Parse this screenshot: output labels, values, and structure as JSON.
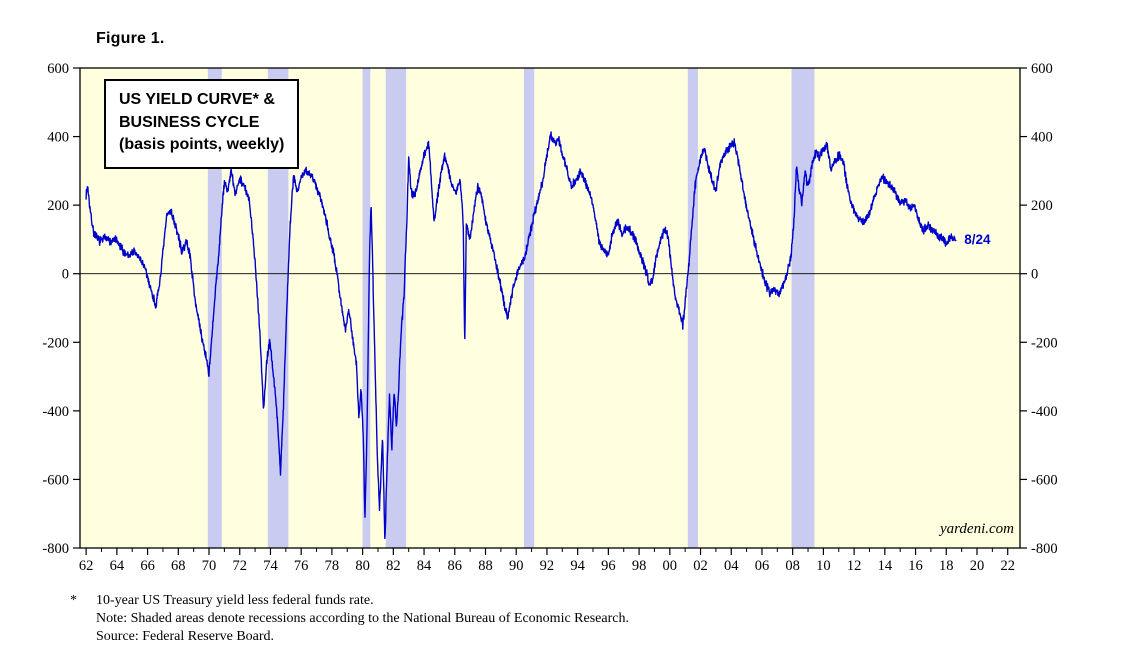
{
  "figure_label": "Figure 1.",
  "title_box": {
    "line1": "US YIELD CURVE* &",
    "line2": "BUSINESS CYCLE",
    "line3": "(basis points, weekly)"
  },
  "watermark": "yardeni.com",
  "footnotes": {
    "marker": "*",
    "line1": "10-year US Treasury yield less federal funds rate.",
    "line2": "Note: Shaded areas denote recessions according to the National Bureau of Economic Research.",
    "line3": "Source: Federal Reserve Board."
  },
  "chart_data": {
    "type": "line",
    "title": "US YIELD CURVE* & BUSINESS CYCLE (basis points, weekly)",
    "ylabel": "basis points",
    "xlabel": "",
    "xlim": [
      1961.6,
      2022.8
    ],
    "ylim": [
      -800,
      600
    ],
    "zero_line": true,
    "grid": false,
    "legend": "none",
    "last_label": "8/24",
    "seed": 7,
    "noise_bps": 15,
    "colors": {
      "line": "#0000cc",
      "plot_bg": "#ffffe0",
      "recession_band": "#c9ccf0",
      "frame": "#000000",
      "label_blue": "#0000cc"
    },
    "y_axis": {
      "ticks": [
        600,
        400,
        200,
        0,
        -200,
        -400,
        -600,
        -800
      ],
      "labels": [
        "600",
        "400",
        "200",
        "0",
        "-200",
        "-400",
        "-600",
        "-800"
      ]
    },
    "x_axis": {
      "ticks": [
        1962,
        1964,
        1966,
        1968,
        1970,
        1972,
        1974,
        1976,
        1978,
        1980,
        1982,
        1984,
        1986,
        1988,
        1990,
        1992,
        1994,
        1996,
        1998,
        2000,
        2002,
        2004,
        2006,
        2008,
        2010,
        2012,
        2014,
        2016,
        2018,
        2020,
        2022
      ],
      "labels": [
        "62",
        "64",
        "66",
        "68",
        "70",
        "72",
        "74",
        "76",
        "78",
        "80",
        "82",
        "84",
        "86",
        "88",
        "90",
        "92",
        "94",
        "96",
        "98",
        "00",
        "02",
        "04",
        "06",
        "08",
        "10",
        "12",
        "14",
        "16",
        "18",
        "20",
        "22"
      ],
      "minor_step": 1
    },
    "recessions": [
      [
        1969.92,
        1970.83
      ],
      [
        1973.83,
        1975.17
      ],
      [
        1980.0,
        1980.5
      ],
      [
        1981.5,
        1982.83
      ],
      [
        1990.5,
        1991.17
      ],
      [
        2001.17,
        2001.83
      ],
      [
        2007.92,
        2009.42
      ]
    ],
    "series": [
      {
        "name": "10-year US Treasury yield less federal funds rate",
        "color": "#0000cc",
        "anchors": [
          [
            1962.0,
            230
          ],
          [
            1962.1,
            255
          ],
          [
            1962.3,
            170
          ],
          [
            1962.5,
            120
          ],
          [
            1962.75,
            100
          ],
          [
            1963.0,
            95
          ],
          [
            1963.3,
            110
          ],
          [
            1963.6,
            90
          ],
          [
            1963.9,
            100
          ],
          [
            1964.2,
            80
          ],
          [
            1964.5,
            60
          ],
          [
            1964.8,
            55
          ],
          [
            1965.1,
            65
          ],
          [
            1965.4,
            50
          ],
          [
            1965.7,
            30
          ],
          [
            1966.0,
            -10
          ],
          [
            1966.3,
            -60
          ],
          [
            1966.55,
            -95
          ],
          [
            1966.75,
            -40
          ],
          [
            1967.0,
            60
          ],
          [
            1967.25,
            170
          ],
          [
            1967.5,
            185
          ],
          [
            1967.75,
            150
          ],
          [
            1968.0,
            110
          ],
          [
            1968.25,
            60
          ],
          [
            1968.5,
            95
          ],
          [
            1968.75,
            60
          ],
          [
            1969.0,
            -40
          ],
          [
            1969.25,
            -120
          ],
          [
            1969.5,
            -180
          ],
          [
            1969.75,
            -230
          ],
          [
            1970.0,
            -290
          ],
          [
            1970.2,
            -180
          ],
          [
            1970.4,
            -60
          ],
          [
            1970.6,
            40
          ],
          [
            1970.8,
            160
          ],
          [
            1971.0,
            270
          ],
          [
            1971.2,
            240
          ],
          [
            1971.45,
            300
          ],
          [
            1971.7,
            230
          ],
          [
            1972.0,
            280
          ],
          [
            1972.3,
            255
          ],
          [
            1972.6,
            215
          ],
          [
            1972.85,
            120
          ],
          [
            1973.1,
            -30
          ],
          [
            1973.3,
            -160
          ],
          [
            1973.55,
            -400
          ],
          [
            1973.75,
            -260
          ],
          [
            1973.95,
            -190
          ],
          [
            1974.2,
            -300
          ],
          [
            1974.45,
            -420
          ],
          [
            1974.65,
            -580
          ],
          [
            1974.85,
            -380
          ],
          [
            1975.05,
            -120
          ],
          [
            1975.25,
            120
          ],
          [
            1975.5,
            285
          ],
          [
            1975.75,
            240
          ],
          [
            1976.0,
            280
          ],
          [
            1976.3,
            300
          ],
          [
            1976.6,
            290
          ],
          [
            1976.9,
            265
          ],
          [
            1977.2,
            230
          ],
          [
            1977.5,
            185
          ],
          [
            1977.8,
            120
          ],
          [
            1978.1,
            60
          ],
          [
            1978.4,
            -20
          ],
          [
            1978.7,
            -120
          ],
          [
            1978.9,
            -160
          ],
          [
            1979.1,
            -100
          ],
          [
            1979.35,
            -190
          ],
          [
            1979.6,
            -260
          ],
          [
            1979.75,
            -420
          ],
          [
            1979.9,
            -330
          ],
          [
            1980.05,
            -480
          ],
          [
            1980.15,
            -720
          ],
          [
            1980.3,
            -430
          ],
          [
            1980.45,
            60
          ],
          [
            1980.55,
            205
          ],
          [
            1980.65,
            30
          ],
          [
            1980.8,
            -250
          ],
          [
            1980.95,
            -520
          ],
          [
            1981.1,
            -690
          ],
          [
            1981.3,
            -480
          ],
          [
            1981.45,
            -780
          ],
          [
            1981.6,
            -560
          ],
          [
            1981.75,
            -350
          ],
          [
            1981.9,
            -510
          ],
          [
            1982.05,
            -340
          ],
          [
            1982.2,
            -450
          ],
          [
            1982.35,
            -330
          ],
          [
            1982.5,
            -180
          ],
          [
            1982.7,
            -60
          ],
          [
            1982.9,
            180
          ],
          [
            1983.0,
            345
          ],
          [
            1983.15,
            240
          ],
          [
            1983.4,
            230
          ],
          [
            1983.65,
            280
          ],
          [
            1983.9,
            330
          ],
          [
            1984.1,
            355
          ],
          [
            1984.3,
            385
          ],
          [
            1984.5,
            255
          ],
          [
            1984.65,
            150
          ],
          [
            1984.9,
            230
          ],
          [
            1985.1,
            295
          ],
          [
            1985.35,
            345
          ],
          [
            1985.6,
            300
          ],
          [
            1985.85,
            255
          ],
          [
            1986.1,
            235
          ],
          [
            1986.35,
            280
          ],
          [
            1986.55,
            150
          ],
          [
            1986.65,
            -215
          ],
          [
            1986.75,
            140
          ],
          [
            1987.0,
            105
          ],
          [
            1987.25,
            185
          ],
          [
            1987.5,
            255
          ],
          [
            1987.75,
            225
          ],
          [
            1988.0,
            155
          ],
          [
            1988.3,
            105
          ],
          [
            1988.6,
            45
          ],
          [
            1988.9,
            -15
          ],
          [
            1989.2,
            -85
          ],
          [
            1989.45,
            -130
          ],
          [
            1989.7,
            -60
          ],
          [
            1990.0,
            -5
          ],
          [
            1990.3,
            25
          ],
          [
            1990.6,
            55
          ],
          [
            1990.85,
            105
          ],
          [
            1991.1,
            160
          ],
          [
            1991.4,
            215
          ],
          [
            1991.7,
            265
          ],
          [
            1992.0,
            345
          ],
          [
            1992.25,
            405
          ],
          [
            1992.5,
            380
          ],
          [
            1992.75,
            395
          ],
          [
            1993.0,
            350
          ],
          [
            1993.3,
            305
          ],
          [
            1993.6,
            255
          ],
          [
            1993.9,
            275
          ],
          [
            1994.2,
            295
          ],
          [
            1994.5,
            265
          ],
          [
            1994.8,
            235
          ],
          [
            1995.1,
            175
          ],
          [
            1995.4,
            95
          ],
          [
            1995.7,
            65
          ],
          [
            1996.0,
            55
          ],
          [
            1996.3,
            125
          ],
          [
            1996.6,
            155
          ],
          [
            1996.9,
            115
          ],
          [
            1997.2,
            135
          ],
          [
            1997.5,
            120
          ],
          [
            1997.8,
            95
          ],
          [
            1998.1,
            55
          ],
          [
            1998.4,
            15
          ],
          [
            1998.7,
            -35
          ],
          [
            1998.9,
            -10
          ],
          [
            1999.1,
            45
          ],
          [
            1999.4,
            95
          ],
          [
            1999.7,
            135
          ],
          [
            1999.9,
            105
          ],
          [
            2000.1,
            25
          ],
          [
            2000.35,
            -65
          ],
          [
            2000.6,
            -110
          ],
          [
            2000.85,
            -150
          ],
          [
            2001.05,
            -60
          ],
          [
            2001.25,
            30
          ],
          [
            2001.45,
            155
          ],
          [
            2001.65,
            255
          ],
          [
            2001.85,
            310
          ],
          [
            2002.05,
            345
          ],
          [
            2002.25,
            365
          ],
          [
            2002.5,
            315
          ],
          [
            2002.75,
            270
          ],
          [
            2003.0,
            245
          ],
          [
            2003.25,
            315
          ],
          [
            2003.5,
            345
          ],
          [
            2003.75,
            360
          ],
          [
            2004.0,
            375
          ],
          [
            2004.2,
            385
          ],
          [
            2004.45,
            330
          ],
          [
            2004.7,
            265
          ],
          [
            2005.0,
            195
          ],
          [
            2005.3,
            135
          ],
          [
            2005.6,
            75
          ],
          [
            2005.9,
            25
          ],
          [
            2006.2,
            -25
          ],
          [
            2006.5,
            -55
          ],
          [
            2006.8,
            -45
          ],
          [
            2007.1,
            -60
          ],
          [
            2007.4,
            -30
          ],
          [
            2007.7,
            15
          ],
          [
            2007.9,
            55
          ],
          [
            2008.1,
            165
          ],
          [
            2008.25,
            320
          ],
          [
            2008.4,
            255
          ],
          [
            2008.6,
            205
          ],
          [
            2008.8,
            295
          ],
          [
            2009.0,
            255
          ],
          [
            2009.25,
            315
          ],
          [
            2009.5,
            355
          ],
          [
            2009.75,
            340
          ],
          [
            2010.0,
            365
          ],
          [
            2010.25,
            375
          ],
          [
            2010.5,
            300
          ],
          [
            2010.75,
            330
          ],
          [
            2011.0,
            345
          ],
          [
            2011.25,
            335
          ],
          [
            2011.5,
            270
          ],
          [
            2011.75,
            210
          ],
          [
            2012.0,
            185
          ],
          [
            2012.3,
            160
          ],
          [
            2012.6,
            150
          ],
          [
            2012.9,
            165
          ],
          [
            2013.2,
            205
          ],
          [
            2013.5,
            250
          ],
          [
            2013.8,
            280
          ],
          [
            2014.1,
            270
          ],
          [
            2014.4,
            255
          ],
          [
            2014.7,
            235
          ],
          [
            2015.0,
            205
          ],
          [
            2015.3,
            215
          ],
          [
            2015.6,
            190
          ],
          [
            2015.9,
            200
          ],
          [
            2016.2,
            160
          ],
          [
            2016.5,
            125
          ],
          [
            2016.8,
            140
          ],
          [
            2017.1,
            130
          ],
          [
            2017.4,
            115
          ],
          [
            2017.7,
            105
          ],
          [
            2018.0,
            90
          ],
          [
            2018.3,
            110
          ],
          [
            2018.65,
            95
          ]
        ]
      }
    ]
  }
}
